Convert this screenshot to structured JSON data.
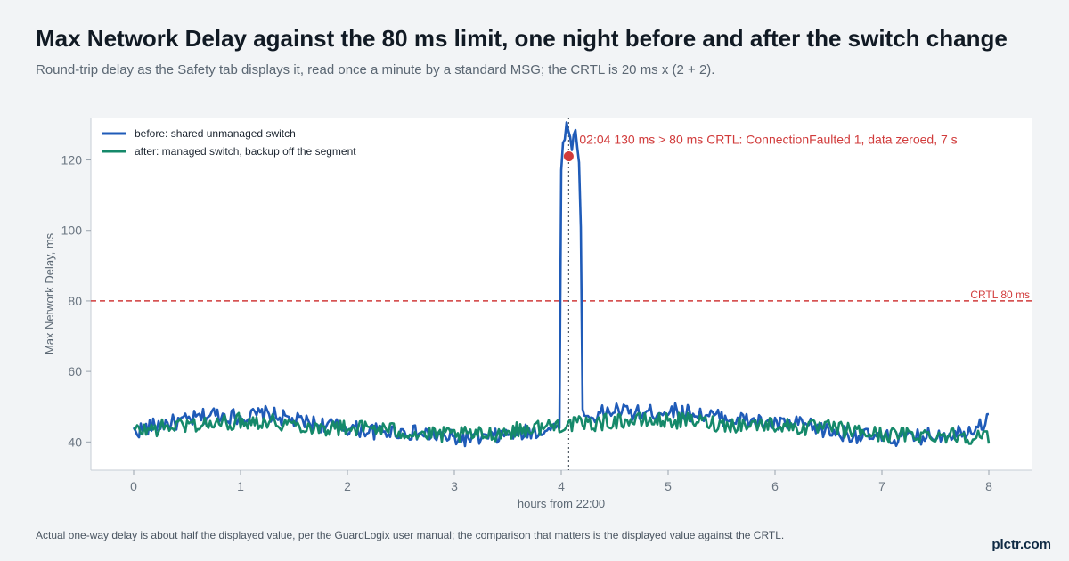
{
  "header": {
    "title": "Max Network Delay against the 80 ms limit, one night before and after the switch change",
    "subtitle": "Round-trip delay as the Safety tab displays it, read once a minute by a standard MSG; the CRTL is 20 ms x (2 + 2)."
  },
  "footer": {
    "note": "Actual one-way delay is about half the displayed value, per the GuardLogix user manual; the comparison that matters is the displayed value against the CRTL.",
    "brand": "plctr.com"
  },
  "chart_data": {
    "type": "line",
    "title": "",
    "xlabel": "hours from 22:00",
    "ylabel": "Max Network Delay, ms",
    "xlim": [
      -0.4,
      8.4
    ],
    "ylim": [
      32,
      132
    ],
    "x_ticks": [
      0,
      1,
      2,
      3,
      4,
      5,
      6,
      7,
      8
    ],
    "y_ticks": [
      40,
      60,
      80,
      100,
      120
    ],
    "grid": false,
    "legend": "top-left",
    "reference_line": {
      "y": 80,
      "label": "CRTL 80 ms",
      "color": "#d13b3b"
    },
    "event_marker": {
      "x": 4.07,
      "style": "dotted vertical"
    },
    "annotation": {
      "x": 4.07,
      "y": 121,
      "text": "02:04  130 ms > 80 ms CRTL: ConnectionFaulted 1, data zeroed, 7 s"
    },
    "series": [
      {
        "name": "before: shared unmanaged switch",
        "color": "#1f5bb8",
        "x": [
          0,
          0.25,
          0.5,
          0.75,
          1,
          1.25,
          1.5,
          1.75,
          2,
          2.25,
          2.5,
          2.75,
          3,
          3.25,
          3.5,
          3.75,
          3.95,
          3.99,
          4.0,
          4.02,
          4.05,
          4.07,
          4.1,
          4.12,
          4.15,
          4.18,
          4.2,
          4.25,
          4.5,
          4.75,
          5,
          5.25,
          5.5,
          5.75,
          6,
          6.25,
          6.5,
          6.75,
          7,
          7.25,
          7.5,
          7.75,
          8
        ],
        "y": [
          43,
          45,
          46,
          48,
          47,
          48,
          46,
          45,
          44,
          43,
          43,
          42,
          41,
          41,
          42,
          43,
          44,
          46,
          118,
          125,
          130,
          127,
          124,
          129,
          125,
          113,
          48,
          47,
          49,
          48,
          49,
          48,
          47,
          46,
          45,
          45,
          43,
          42,
          41,
          41,
          42,
          43,
          46
        ]
      },
      {
        "name": "after: managed switch, backup off the segment",
        "color": "#15896a",
        "x": [
          0,
          0.25,
          0.5,
          0.75,
          1,
          1.25,
          1.5,
          1.75,
          2,
          2.25,
          2.5,
          2.75,
          3,
          3.25,
          3.5,
          3.75,
          4,
          4.25,
          4.5,
          4.75,
          5,
          5.25,
          5.5,
          5.75,
          6,
          6.25,
          6.5,
          6.75,
          7,
          7.25,
          7.5,
          7.75,
          8
        ],
        "y": [
          43,
          44,
          45,
          45,
          46,
          46,
          45,
          44,
          44,
          44,
          43,
          42,
          42,
          42,
          43,
          44,
          45,
          45,
          46,
          46,
          46,
          46,
          45,
          45,
          45,
          44,
          44,
          43,
          42,
          42,
          42,
          42,
          41
        ]
      }
    ]
  }
}
